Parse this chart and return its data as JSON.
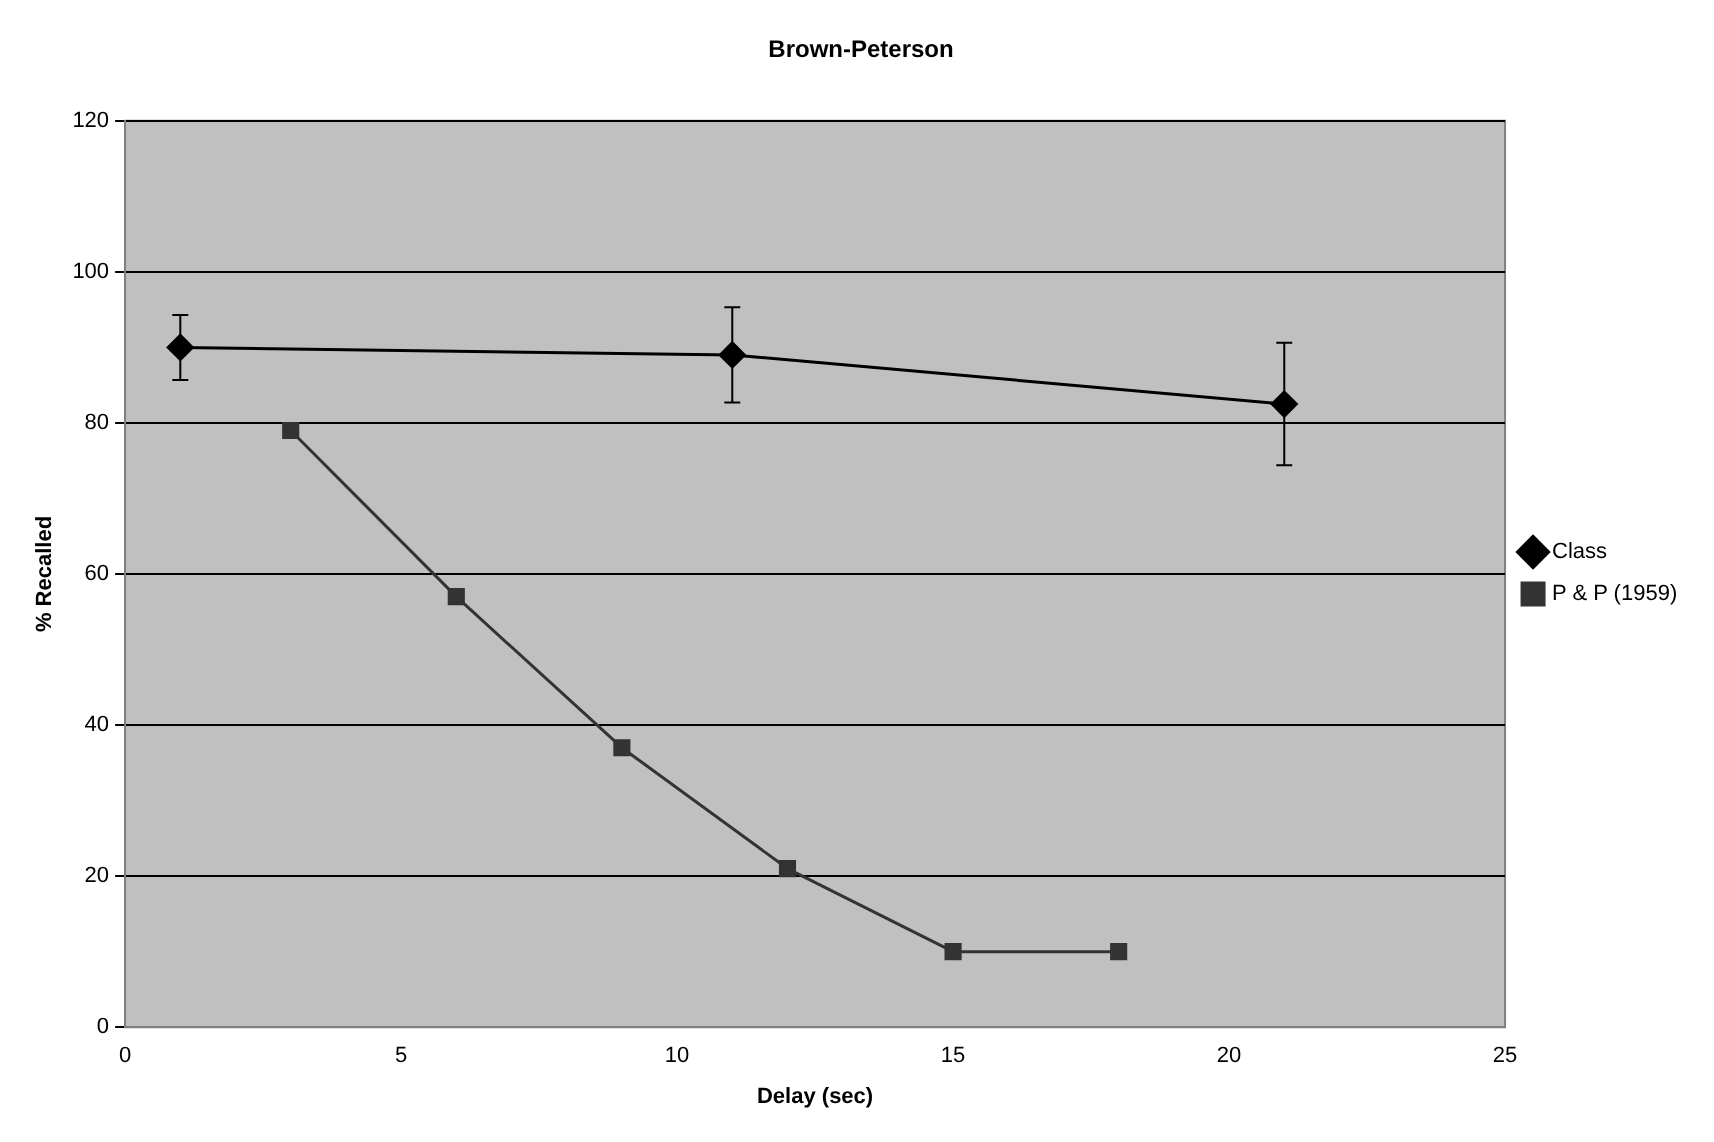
{
  "chart_data": {
    "type": "line",
    "title": "Brown-Peterson",
    "xlabel": "Delay (sec)",
    "ylabel": "% Recalled",
    "xlim": [
      0,
      25
    ],
    "xticks": [
      0,
      5,
      10,
      15,
      20,
      25
    ],
    "ylim": [
      0,
      120
    ],
    "yticks": [
      0,
      20,
      40,
      60,
      80,
      100,
      120
    ],
    "grid": "y",
    "legend": "right",
    "series": [
      {
        "name": "Class",
        "color": "#000000",
        "marker": "diamond",
        "x": [
          1,
          11,
          21
        ],
        "values": [
          90,
          89,
          82.5
        ],
        "errors": [
          4.3,
          6.3,
          8.1
        ]
      },
      {
        "name": "P & P (1959)",
        "color": "#333333",
        "marker": "square",
        "x": [
          3,
          6,
          9,
          12,
          15,
          18
        ],
        "values": [
          79,
          57,
          37,
          21,
          10,
          10
        ]
      }
    ]
  }
}
